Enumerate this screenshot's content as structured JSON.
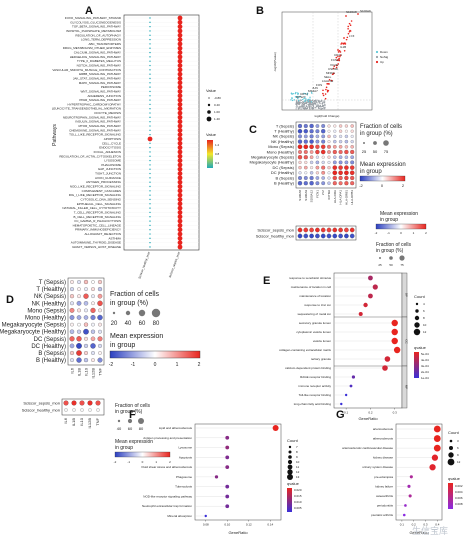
{
  "panel_labels": [
    "A",
    "B",
    "C",
    "D",
    "E",
    "F",
    "G"
  ],
  "colors": {
    "red": "#e8251f",
    "blue": "#2b3fc0",
    "teal": "#1fa9b7",
    "yellow": "#f2c418",
    "magenta": "#e0248a",
    "purple": "#7b34c9"
  },
  "watermark": "生信宝库",
  "chart_data": [
    {
      "id": "A",
      "type": "scatter",
      "subtype": "dot-plot",
      "ylabel": "Pathways",
      "columns": [
        "Sciscor_healthy_mon",
        "Sciscor_sepsis_mon"
      ],
      "legend_size_title": "Value",
      "legend_sizes": [
        "-0.80",
        "0.40",
        "1.00",
        "1.40"
      ],
      "legend_color_title": "Value",
      "legend_color_ticks": [
        "1.2",
        "0.8",
        "0.4"
      ],
      "pathways": [
        "FOXO_SIGNALING_PATHWAY_STRAND",
        "GLYCOLYSIS_GLUCONEOGENESIS",
        "TGF_BETA_SIGNALING_PATHWAY",
        "INOSITOL_PHOSPHATE_METABOLISM",
        "REGULATION_OF_AUTOPHAGY",
        "LONG_TERM_DEPRESSION",
        "ABC_TRANSPORTERS",
        "DRUG_METABOLISM_OTHER_ENZYMES",
        "CALCIUM_SIGNALING_PATHWAY",
        "HEDGEHOG_SIGNALING_PATHWAY",
        "TYPE_II_DIABETES_MELLITUS",
        "NOTCH_SIGNALING_PATHWAY",
        "VASCULAR_SMOOTH_MUSCLE_CONTRACTION",
        "ERBB_SIGNALING_PATHWAY",
        "JAK_STAT_SIGNALING_PATHWAY",
        "MAPK_SIGNALING_PATHWAY",
        "PEROXISOME",
        "WNT_SIGNALING_PATHWAY",
        "ADHERENS_JUNCTION",
        "PPAR_SIGNALING_PATHWAY",
        "HYPERTROPHIC_CARDIOMYOPATHY",
        "LEUKOCYTE_TRANSENDOTHELIAL_MIGRATION",
        "OOCYTE_MEIOSIS",
        "NEUROTROPHIN_SIGNALING_PATHWAY",
        "INSULIN_SIGNALING_PATHWAY",
        "MTOR_SIGNALING_PATHWAY",
        "CHEMOKINE_SIGNALING_PATHWAY",
        "TOLL_LIKE_RECEPTOR_SIGNALING",
        "APOPTOSIS",
        "CELL_CYCLE",
        "ENDOCYTOSIS",
        "FOCAL_ADHESION",
        "REGULATION_OF_ACTIN_CYTOSKELETON",
        "LYSOSOME",
        "PHAGOSOME",
        "GAP_JUNCTION",
        "TIGHT_JUNCTION",
        "AXON_GUIDANCE",
        "ANTIGEN_PROCESSING",
        "NOD_LIKE_RECEPTOR_SIGNALING",
        "COMPLEMENT_CASCADES",
        "RIG_I_LIKE_RECEPTOR_SIGNALING",
        "CYTOSOLIC_DNA_SENSING",
        "EPITHELIAL_CELL_SIGNALING",
        "NATURAL_KILLER_CELL_CYTOTOXICITY",
        "T_CELL_RECEPTOR_SIGNALING",
        "B_CELL_RECEPTOR_SIGNALING",
        "FC_GAMMA_R_PHAGOCYTOSIS",
        "HEMATOPOIETIC_CELL_LINEAGE",
        "PRIMARY_IMMUNODEFICIENCY",
        "ALLOGRAFT_REJECTION",
        "ASTHMA",
        "AUTOIMMUNE_THYROID_DISEASE",
        "GRAFT_VERSUS_HOST_DISEASE"
      ],
      "healthy_dot": [
        "small",
        "small",
        "small",
        "small",
        "small",
        "small",
        "small",
        "small",
        "small",
        "small",
        "small",
        "small",
        "small",
        "small",
        "small",
        "small",
        "small",
        "small",
        "small",
        "small",
        "small",
        "small",
        "small",
        "small",
        "small",
        "small",
        "small",
        "small",
        "large",
        "small",
        "small",
        "small",
        "small",
        "small",
        "small",
        "small",
        "small",
        "small",
        "small",
        "small",
        "small",
        "small",
        "small",
        "small",
        "small",
        "small",
        "small",
        "small",
        "small",
        "small",
        "small",
        "small",
        "small",
        "small"
      ],
      "sepsis_dot": [
        "large",
        "large",
        "large",
        "large",
        "large",
        "large",
        "large",
        "large",
        "large",
        "large",
        "large",
        "large",
        "large",
        "large",
        "large",
        "large",
        "large",
        "large",
        "large",
        "large",
        "large",
        "large",
        "large",
        "large",
        "large",
        "large",
        "large",
        "large",
        "large",
        "large",
        "large",
        "large",
        "large",
        "large",
        "large",
        "large",
        "large",
        "large",
        "large",
        "large",
        "large",
        "large",
        "large",
        "large",
        "large",
        "large",
        "large",
        "large",
        "large",
        "large",
        "large",
        "large",
        "large",
        "large"
      ]
    },
    {
      "id": "B",
      "type": "scatter",
      "subtype": "volcano",
      "xlabel": "log2(Fold Change)",
      "ylabel": "-log10(Pvalue)",
      "legend": [
        "Down",
        "NoSig",
        "Up"
      ],
      "labels": [
        "S100A8",
        "S100A9",
        "LYZ",
        "IL1B",
        "CD14",
        "FCN1",
        "VCAN",
        "CSF3R",
        "MNDA",
        "SELL",
        "LGALS2",
        "FOS",
        "JUN",
        "MS4A7",
        "CD74",
        "RPS27"
      ]
    },
    {
      "id": "C",
      "type": "scatter",
      "subtype": "gene-dotplot",
      "rows": [
        "T (Sepsis)",
        "T (Healthy)",
        "NK (Sepsis)",
        "NK (Healthy)",
        "Mono (Sepsis)",
        "Mono (Healthy)",
        "Megakaryocyte (Sepsis)",
        "Megakaryocyte (Healthy)",
        "DC (Sepsis)",
        "DC (Healthy)",
        "B (Sepsis)",
        "B (Healthy)"
      ],
      "genes": [
        "S100A8",
        "S100A9",
        "S100A12",
        "FCN1",
        "LYZ",
        "IFITM2",
        "HLA-DRA",
        "HLA-DPA1",
        "HLA-DRB1",
        "HLA-DPB1"
      ],
      "size_title": "Fraction of cells in group (%)",
      "size_ticks": [
        "25",
        "50",
        "75"
      ],
      "color_title": "Mean expression in group",
      "color_ticks": [
        "-2",
        "0",
        "2"
      ],
      "sub_rows": [
        "Sciscor_sepsis_mon",
        "Sciscor_healthy_mon"
      ],
      "sub_color_title": "Mean expression in group",
      "sub_color_ticks": [
        "-2",
        "-1",
        "0",
        "1",
        "2"
      ],
      "sub_size_title": "Fraction of cells in group (%)",
      "sub_size_ticks": [
        "25",
        "50",
        "75"
      ]
    },
    {
      "id": "D",
      "type": "scatter",
      "subtype": "gene-dotplot",
      "rows": [
        "T (Sepsis)",
        "T (Healthy)",
        "NK (Sepsis)",
        "NK (Healthy)",
        "Mono (Sepsis)",
        "Mono (Healthy)",
        "Megakaryocyte (Sepsis)",
        "Megakaryocyte (Healthy)",
        "DC (Sepsis)",
        "DC (Healthy)",
        "B (Sepsis)",
        "B (Healthy)"
      ],
      "genes": [
        "IL6",
        "IL1B",
        "IL10",
        "IL12B",
        "TNF"
      ],
      "size_title": "Fraction of cells in group (%)",
      "size_ticks": [
        "20",
        "40",
        "60",
        "80"
      ],
      "color_title": "Mean expression in group",
      "color_ticks": [
        "-2",
        "-1",
        "0",
        "1",
        "2"
      ],
      "matrix": [
        [
          0.2,
          -0.3,
          0.6,
          0.0,
          0.5
        ],
        [
          -0.4,
          0.1,
          -0.2,
          0.3,
          -0.6
        ],
        [
          0.5,
          0.2,
          1.5,
          -0.2,
          0.9
        ],
        [
          -0.3,
          -1.0,
          -0.7,
          0.1,
          1.6
        ],
        [
          1.1,
          0.3,
          -0.2,
          1.4,
          0.2
        ],
        [
          -1.1,
          -0.9,
          -0.8,
          -1.3,
          -1.6
        ],
        [
          0.1,
          0.0,
          0.6,
          -0.1,
          0.2
        ],
        [
          -0.7,
          -0.5,
          -1.8,
          -0.6,
          -0.3
        ],
        [
          1.4,
          1.5,
          0.3,
          0.8,
          1.2
        ],
        [
          -0.9,
          -1.9,
          -0.5,
          -1.6,
          -0.4
        ],
        [
          0.5,
          1.8,
          0.4,
          -0.3,
          0.1
        ],
        [
          -0.3,
          -1.5,
          -0.6,
          0.2,
          -1.2
        ]
      ],
      "sub_rows": [
        "Sciscor_sepsis_mon",
        "Sciscor_healthy_mon"
      ],
      "sub_genes": [
        "IL6",
        "IL1B",
        "IL10",
        "IL12B",
        "TNF"
      ],
      "sub_size_title": "Fraction of cells in group (%)",
      "sub_size_ticks": [
        "40",
        "60",
        "80"
      ],
      "sub_color_title": "Mean expression in group",
      "sub_color_ticks": [
        "-2",
        "-1",
        "0",
        "1",
        "2"
      ]
    },
    {
      "id": "E",
      "type": "scatter",
      "subtype": "go-enrichment",
      "xlabel": "GeneRatio",
      "xticks": [
        "0.1",
        "0.2",
        "0.3"
      ],
      "xlim": [
        0.05,
        0.33
      ],
      "facets": [
        "BP",
        "CC",
        "MF"
      ],
      "terms": [
        "response to xenobiotic stimulus",
        "maintenance of location in cell",
        "maintenance of location",
        "response to zinc ion",
        "sequestering of metal ion",
        "secretory granule lumen",
        "cytoplasmic vesicle lumen",
        "vesicle lumen",
        "collagen-containing extracellular matrix",
        "tertiary granule",
        "calcium-dependent protein binding",
        "RAGE receptor binding",
        "immune receptor activity",
        "Toll-like receptor binding",
        "long-chain fatty acid binding"
      ],
      "ratio": [
        0.2,
        0.22,
        0.2,
        0.18,
        0.16,
        0.3,
        0.3,
        0.3,
        0.31,
        0.27,
        0.26,
        0.13,
        0.12,
        0.1,
        0.08
      ],
      "count": [
        10,
        11,
        10,
        9,
        8,
        14,
        14,
        14,
        14,
        12,
        12,
        6,
        5,
        4,
        4
      ],
      "qvalue": [
        0.0004,
        0.0003,
        0.0003,
        0.0002,
        0.0002,
        0.0001,
        0.0001,
        0.0001,
        0.0001,
        0.0002,
        0.0002,
        0.0007,
        0.0008,
        0.0009,
        0.0009
      ],
      "count_title": "Count",
      "count_ticks": [
        "4",
        "6",
        "8",
        "10",
        "12"
      ],
      "color_title": "qvalue",
      "color_ticks": [
        "5e-04",
        "4e-04",
        "3e-04",
        "2e-04",
        "1e-04"
      ]
    },
    {
      "id": "F",
      "type": "scatter",
      "subtype": "kegg-enrichment",
      "xlabel": "GeneRatio",
      "xticks": [
        "0.08",
        "0.10",
        "0.12",
        "0.14"
      ],
      "xlim": [
        0.07,
        0.15
      ],
      "terms": [
        "Lipid and atherosclerosis",
        "Antigen processing and presentation",
        "Lysosome",
        "Apoptosis",
        "Fluid shear stress and atherosclerosis",
        "Phagosome",
        "Tuberculosis",
        "NOD-like receptor signaling pathway",
        "Neutrophil extracellular trap formation",
        "Mineral absorption"
      ],
      "ratio": [
        0.145,
        0.1,
        0.1,
        0.1,
        0.1,
        0.09,
        0.1,
        0.1,
        0.1,
        0.08
      ],
      "count": [
        14,
        9,
        9,
        9,
        9,
        8,
        9,
        9,
        9,
        6
      ],
      "qvalue": [
        0.002,
        0.012,
        0.011,
        0.013,
        0.012,
        0.012,
        0.014,
        0.014,
        0.014,
        0.02
      ],
      "count_title": "Count",
      "count_ticks": [
        "7",
        "8",
        "9",
        "10",
        "11",
        "12",
        "13"
      ],
      "color_title": "qvalue",
      "color_ticks": [
        "0.020",
        "0.015",
        "0.010",
        "0.005"
      ]
    },
    {
      "id": "G",
      "type": "scatter",
      "subtype": "do-enrichment",
      "xlabel": "GeneRatio",
      "xticks": [
        "0.1",
        "0.2",
        "0.3",
        "0.4"
      ],
      "xlim": [
        0.05,
        0.44
      ],
      "terms": [
        "arteriosclerosis",
        "atherosclerosis",
        "arteriosclerotic cardiovascular disease",
        "kidney disease",
        "urinary system disease",
        "pre-eclampsia",
        "kidney failure",
        "osteoarthritis",
        "periodontitis",
        "psoriatic arthritis"
      ],
      "ratio": [
        0.4,
        0.4,
        0.4,
        0.38,
        0.36,
        0.18,
        0.16,
        0.17,
        0.13,
        0.12
      ],
      "count": [
        12,
        12,
        12,
        11,
        11,
        5,
        5,
        5,
        4,
        4
      ],
      "qvalue": [
        0.001,
        0.001,
        0.001,
        0.0015,
        0.0016,
        0.006,
        0.007,
        0.006,
        0.008,
        0.009
      ],
      "count_title": "Count",
      "count_ticks": [
        "3",
        "6",
        "9",
        "12"
      ],
      "color_title": "qvalue",
      "color_ticks": [
        "0.002",
        "0.004",
        "0.006",
        "0.008"
      ]
    }
  ]
}
